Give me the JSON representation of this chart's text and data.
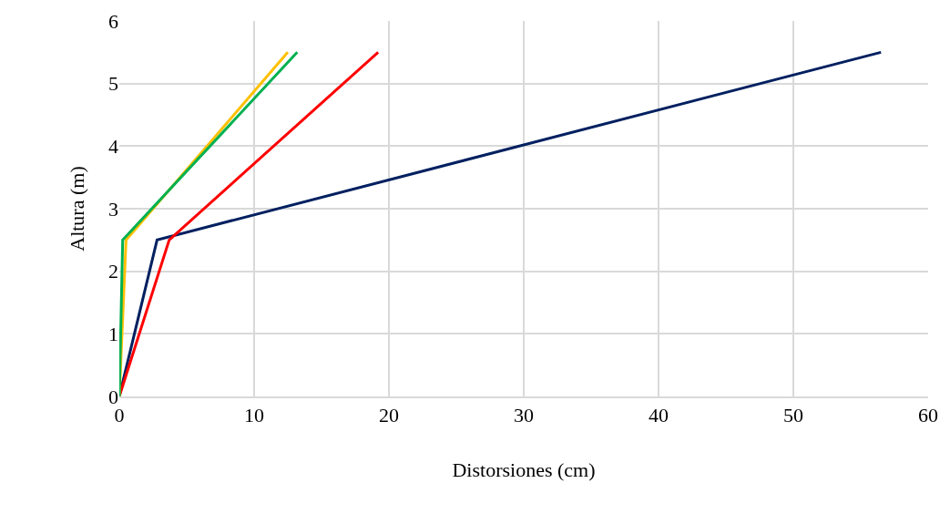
{
  "chart_data": {
    "type": "line",
    "xlabel": "Distorsiones (cm)",
    "ylabel": "Altura (m)",
    "xlim": [
      0,
      60
    ],
    "xticks": [
      0,
      10,
      20,
      30,
      40,
      50,
      60
    ],
    "ylim": [
      0,
      6
    ],
    "yticks": [
      0,
      1,
      2,
      3,
      4,
      5,
      6
    ],
    "grid": true,
    "marker": "none",
    "line_style": "solid",
    "series": [
      {
        "color": "#002060",
        "x": [
          0,
          2.8,
          56.5
        ],
        "values": [
          0,
          2.5,
          5.5
        ]
      },
      {
        "color": "#ff0000",
        "x": [
          0,
          3.7,
          19.2
        ],
        "values": [
          0,
          2.5,
          5.5
        ]
      },
      {
        "color": "#ffc000",
        "x": [
          0,
          0.5,
          12.5
        ],
        "values": [
          0,
          2.5,
          5.5
        ]
      },
      {
        "color": "#00b050",
        "x": [
          0,
          0.25,
          13.2
        ],
        "values": [
          0,
          2.5,
          5.5
        ]
      }
    ]
  }
}
